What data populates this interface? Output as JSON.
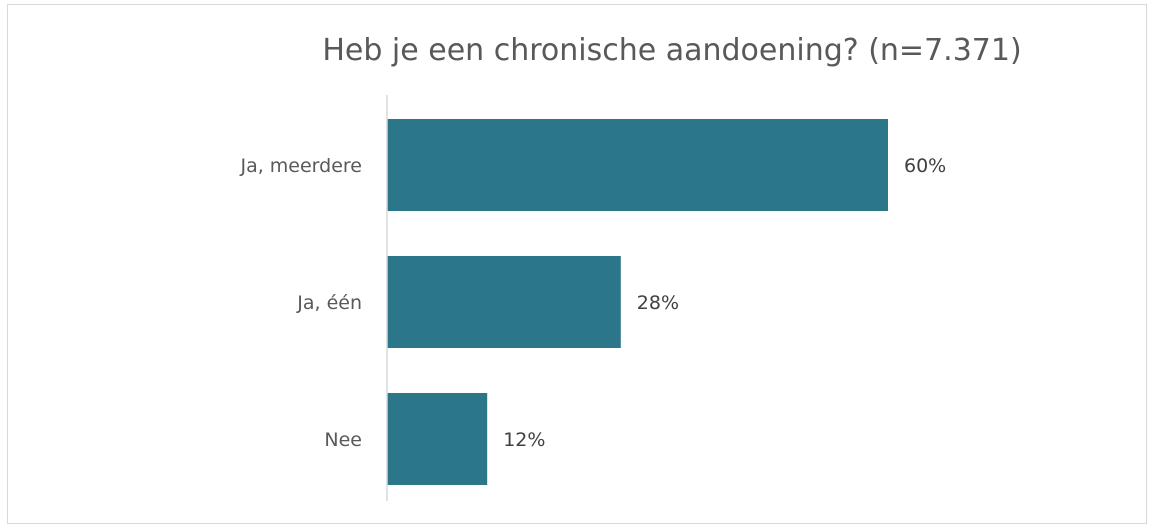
{
  "chart_data": {
    "type": "bar",
    "orientation": "horizontal",
    "title": "Heb je een chronische aandoening? (n=7.371)",
    "categories": [
      "Ja, meerdere",
      "Ja, één",
      "Nee"
    ],
    "values": [
      60,
      28,
      12
    ],
    "value_labels": [
      "60%",
      "28%",
      "12%"
    ],
    "xlim": [
      0,
      100
    ],
    "grid": false,
    "legend": "none",
    "colors": {
      "bar": "#2B7689",
      "axis": "#d9d9d9"
    }
  }
}
